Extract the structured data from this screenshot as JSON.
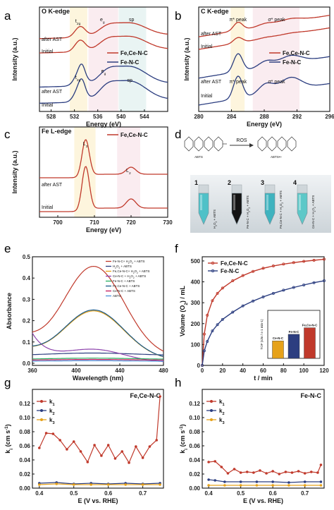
{
  "panel_letters": [
    "a",
    "b",
    "c",
    "d",
    "e",
    "f",
    "g",
    "h"
  ],
  "chart_data": [
    {
      "id": "a",
      "type": "line",
      "title": "O K-edge",
      "xlabel": "Energy (eV)",
      "ylabel": "Intensity (a.u.)",
      "xlim": [
        526,
        548
      ],
      "xticks": [
        528,
        532,
        536,
        540,
        544
      ],
      "region_labels": [
        "t2g",
        "eg",
        "sp"
      ],
      "group_labels": [
        "after AST",
        "Initial"
      ],
      "series": [
        {
          "name": "Fe,Ce-N-C",
          "color": "#c0392b"
        },
        {
          "name": "Fe-N-C",
          "color": "#2c3e80"
        }
      ]
    },
    {
      "id": "b",
      "type": "line",
      "title": "C K-edge",
      "xlabel": "Energy (eV)",
      "ylabel": "Intensity (a.u.)",
      "xlim": [
        280,
        296
      ],
      "xticks": [
        280,
        284,
        288,
        292,
        296
      ],
      "region_labels": [
        "π* peak",
        "σ* peak"
      ],
      "group_labels": [
        "after AST",
        "Initial"
      ],
      "series": [
        {
          "name": "Fe,Ce-N-C",
          "color": "#c0392b"
        },
        {
          "name": "Fe-N-C",
          "color": "#2c3e80"
        }
      ]
    },
    {
      "id": "c",
      "type": "line",
      "title": "Fe L-edge",
      "xlabel": "Energy (eV)",
      "ylabel": "Intensity (a.u.)",
      "xlim": [
        695,
        730
      ],
      "xticks": [
        700,
        710,
        720,
        730
      ],
      "region_labels": [
        "L3",
        "L2"
      ],
      "group_labels": [
        "after AST",
        "Initial"
      ],
      "series": [
        {
          "name": "Fe,Ce-N-C",
          "color": "#c0392b"
        }
      ]
    },
    {
      "id": "d",
      "type": "other",
      "labels": [
        "ABTS",
        "ROS",
        "ABTS•+"
      ],
      "vials": [
        {
          "num": "1",
          "label": "H2O2 + ABTS"
        },
        {
          "num": "2",
          "label": "Fe-N-C + H2O2 + ABTS"
        },
        {
          "num": "3",
          "label": "Fe,Ce-N-C + H2O2 + ABTS"
        },
        {
          "num": "4",
          "label": "Ce-N-C + H2O2 + ABTS"
        }
      ]
    },
    {
      "id": "e",
      "type": "line",
      "xlabel": "Wavelength (nm)",
      "ylabel": "Absorbance",
      "xlim": [
        360,
        480
      ],
      "ylim": [
        -0.01,
        0.5
      ],
      "xticks": [
        360,
        400,
        440,
        480
      ],
      "yticks": [
        0.0,
        0.1,
        0.2,
        0.3,
        0.4,
        0.5
      ],
      "series": [
        {
          "name": "Fe-N-C+ H2O2 + ABTS",
          "color": "#c0392b",
          "peak": 0.5
        },
        {
          "name": "H2O2 + ABTS",
          "color": "#2c3e80",
          "peak": 0.04
        },
        {
          "name": "Fe,Ce-N-C+ H2O2 + ABTS",
          "color": "#e6a21a",
          "peak": 0.27
        },
        {
          "name": "Ce-N-C + H2O2 + ABTS",
          "color": "#8e44ad",
          "peak": 0.07
        },
        {
          "name": "Fe-N-C + ABTS",
          "color": "#27ae60",
          "peak": 0.02
        },
        {
          "name": "Fe,Ce-N-C + ABTS",
          "color": "#1a5a8a",
          "peak": 0.275
        },
        {
          "name": "Ce-N-C + ABTS",
          "color": "#c2185b",
          "peak": 0.015
        },
        {
          "name": "ABTS",
          "color": "#4a90d9",
          "peak": 0.01
        }
      ]
    },
    {
      "id": "f",
      "type": "line",
      "xlabel": "t / min",
      "ylabel": "Volume (O2) / mL",
      "xlim": [
        0,
        120
      ],
      "ylim": [
        0,
        520
      ],
      "xticks": [
        0,
        20,
        40,
        60,
        80,
        100,
        120
      ],
      "yticks": [
        0,
        100,
        200,
        300,
        400,
        500
      ],
      "series": [
        {
          "name": "Fe,Ce-N-C",
          "color": "#c0392b",
          "x": [
            0,
            2,
            5,
            10,
            15,
            20,
            30,
            40,
            50,
            60,
            70,
            80,
            90,
            100,
            110,
            120
          ],
          "y": [
            0,
            150,
            240,
            310,
            345,
            370,
            405,
            430,
            450,
            465,
            476,
            485,
            492,
            498,
            503,
            508
          ]
        },
        {
          "name": "Fe-N-C",
          "color": "#2c3e80",
          "x": [
            0,
            2,
            5,
            10,
            15,
            20,
            30,
            40,
            50,
            60,
            70,
            80,
            90,
            100,
            110,
            120
          ],
          "y": [
            0,
            70,
            115,
            165,
            195,
            220,
            255,
            285,
            308,
            328,
            345,
            360,
            373,
            385,
            396,
            405
          ]
        }
      ],
      "inset": {
        "type": "bar",
        "ylabel": "TOF (s/m / s-1 min-1)",
        "categories": [
          "Ce-N-C",
          "Fe-N-C",
          "Fe,Ce-N-C"
        ],
        "values": [
          0.4,
          0.55,
          0.7
        ],
        "colors": [
          "#e6a21a",
          "#2c3e80",
          "#c0392b"
        ]
      }
    },
    {
      "id": "g",
      "type": "line",
      "title": "Fe,Ce-N-C",
      "xlabel": "E (V vs. RHE)",
      "ylabel": "ki (cm s-1)",
      "xlim": [
        0.38,
        0.76
      ],
      "ylim": [
        0,
        0.14
      ],
      "xticks": [
        0.4,
        0.5,
        0.6,
        0.7
      ],
      "yticks": [
        0.0,
        0.02,
        0.04,
        0.06,
        0.08,
        0.1,
        0.12
      ],
      "series": [
        {
          "name": "k1",
          "color": "#c0392b",
          "x": [
            0.4,
            0.42,
            0.44,
            0.46,
            0.48,
            0.5,
            0.52,
            0.54,
            0.56,
            0.58,
            0.6,
            0.62,
            0.64,
            0.66,
            0.68,
            0.7,
            0.72,
            0.74,
            0.75
          ],
          "y": [
            0.057,
            0.078,
            0.077,
            0.068,
            0.055,
            0.066,
            0.052,
            0.037,
            0.061,
            0.046,
            0.061,
            0.042,
            0.052,
            0.036,
            0.059,
            0.043,
            0.059,
            0.068,
            0.13
          ]
        },
        {
          "name": "k2",
          "color": "#2c3e80",
          "x": [
            0.4,
            0.45,
            0.5,
            0.55,
            0.6,
            0.65,
            0.7,
            0.75
          ],
          "y": [
            0.007,
            0.008,
            0.006,
            0.007,
            0.006,
            0.007,
            0.006,
            0.007
          ]
        },
        {
          "name": "k3",
          "color": "#e6a21a",
          "x": [
            0.4,
            0.45,
            0.5,
            0.55,
            0.6,
            0.65,
            0.7,
            0.75
          ],
          "y": [
            0.005,
            0.006,
            0.005,
            0.005,
            0.005,
            0.005,
            0.005,
            0.005
          ]
        }
      ]
    },
    {
      "id": "h",
      "type": "line",
      "title": "Fe-N-C",
      "xlabel": "E (V vs. RHE)",
      "ylabel": "ki (cm s-1)",
      "xlim": [
        0.38,
        0.76
      ],
      "ylim": [
        0,
        0.14
      ],
      "xticks": [
        0.4,
        0.5,
        0.6,
        0.7
      ],
      "yticks": [
        0.0,
        0.02,
        0.04,
        0.06,
        0.08,
        0.1,
        0.12
      ],
      "series": [
        {
          "name": "k1",
          "color": "#c0392b",
          "x": [
            0.4,
            0.42,
            0.44,
            0.46,
            0.48,
            0.5,
            0.52,
            0.54,
            0.56,
            0.58,
            0.6,
            0.62,
            0.64,
            0.66,
            0.68,
            0.7,
            0.72,
            0.74,
            0.75
          ],
          "y": [
            0.037,
            0.038,
            0.03,
            0.021,
            0.027,
            0.022,
            0.023,
            0.022,
            0.025,
            0.021,
            0.024,
            0.02,
            0.023,
            0.022,
            0.024,
            0.021,
            0.023,
            0.022,
            0.033
          ]
        },
        {
          "name": "k2",
          "color": "#2c3e80",
          "x": [
            0.4,
            0.42,
            0.45,
            0.5,
            0.55,
            0.6,
            0.65,
            0.7,
            0.75
          ],
          "y": [
            0.012,
            0.011,
            0.009,
            0.009,
            0.009,
            0.009,
            0.008,
            0.009,
            0.009
          ]
        },
        {
          "name": "k3",
          "color": "#e6a21a",
          "x": [
            0.4,
            0.45,
            0.5,
            0.55,
            0.6,
            0.65,
            0.7,
            0.75
          ],
          "y": [
            0.004,
            0.004,
            0.004,
            0.004,
            0.004,
            0.004,
            0.004,
            0.004
          ]
        }
      ]
    }
  ]
}
